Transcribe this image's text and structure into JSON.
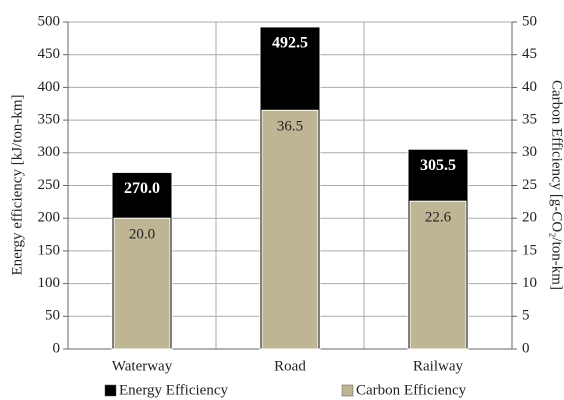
{
  "chart_data": {
    "type": "bar",
    "categories": [
      "Waterway",
      "Road",
      "Railway"
    ],
    "series": [
      {
        "name": "Energy Efficiency",
        "color": "#000000",
        "values": [
          270.0,
          492.5,
          305.5
        ],
        "value_labels": [
          "270.0",
          "492.5",
          "305.5"
        ]
      },
      {
        "name": "Carbon Efficiency",
        "color": "#bdb594",
        "axis": "y2",
        "values": [
          20.0,
          36.5,
          22.6
        ],
        "value_labels": [
          "20.0",
          "36.5",
          "22.6"
        ]
      }
    ],
    "ylabel": "Energy efficiency [kJ/ton-km]",
    "y2label": "Carbon Efficiency [g-CO₂/ton-km]",
    "ylim": [
      0,
      500
    ],
    "yticks": [
      0,
      50,
      100,
      150,
      200,
      250,
      300,
      350,
      400,
      450,
      500
    ],
    "y2lim": [
      0,
      50
    ],
    "y2ticks": [
      0,
      5,
      10,
      15,
      20,
      25,
      30,
      35,
      40,
      45,
      50
    ],
    "grid": true,
    "legend": "bottom"
  }
}
